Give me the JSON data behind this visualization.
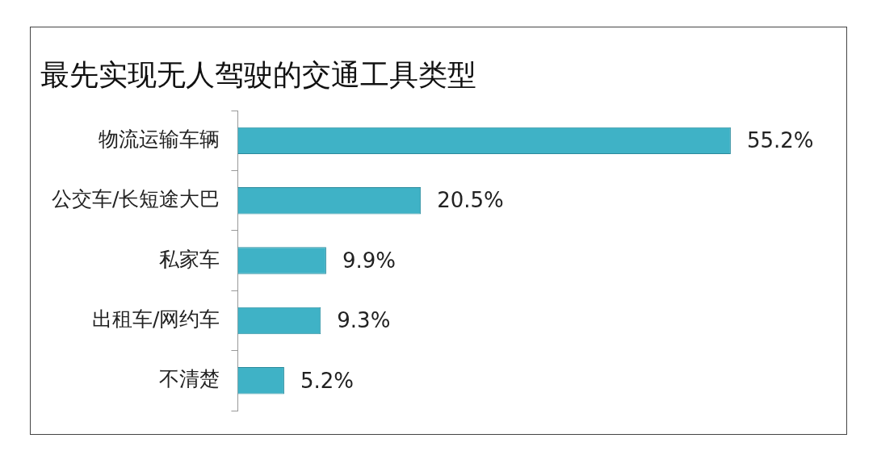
{
  "chart_data": {
    "type": "bar",
    "orientation": "horizontal",
    "title": "最先实现无人驾驶的交通工具类型",
    "categories": [
      "物流运输车辆",
      "公交车/长短途大巴",
      "私家车",
      "出租车/网约车",
      "不清楚"
    ],
    "values": [
      55.2,
      20.5,
      9.9,
      9.3,
      5.2
    ],
    "value_labels": [
      "55.2%",
      "20.5%",
      "9.9%",
      "9.3%",
      "5.2%"
    ],
    "color": "#3fb2c6",
    "grid": false,
    "legend": false
  }
}
